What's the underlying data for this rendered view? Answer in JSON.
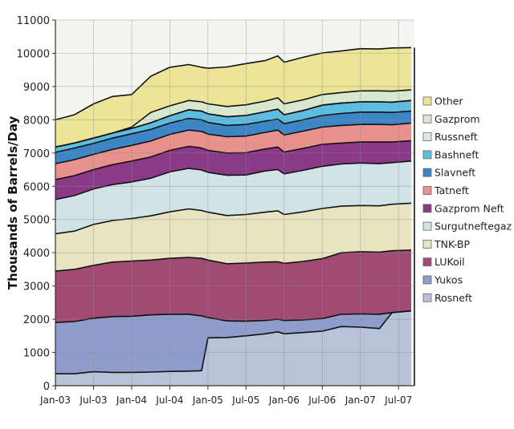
{
  "chart_data": {
    "type": "area",
    "stacked": true,
    "title": "",
    "xlabel": "",
    "ylabel": "Thousands of Barrels/Day",
    "ylim": [
      0,
      11000
    ],
    "yticks": [
      "0",
      "1000",
      "2000",
      "3000",
      "4000",
      "5000",
      "6000",
      "7000",
      "8000",
      "9000",
      "10000",
      "11000"
    ],
    "xticks": [
      "Jan-03",
      "Jul-03",
      "Jan-04",
      "Jul-04",
      "Jan-05",
      "Jul-05",
      "Jan-06",
      "Jul-06",
      "Jan-07",
      "Jul-07"
    ],
    "grid": true,
    "legend_position": "right",
    "x_months": [
      0,
      3,
      6,
      9,
      12,
      15,
      18,
      21,
      23,
      24,
      27,
      30,
      33,
      35,
      36,
      39,
      42,
      45,
      48,
      51,
      53,
      56
    ],
    "x": [
      "Jan-03",
      "Apr-03",
      "Jul-03",
      "Oct-03",
      "Jan-04",
      "Apr-04",
      "Jul-04",
      "Oct-04",
      "Dec-04",
      "Jan-05",
      "Apr-05",
      "Jul-05",
      "Oct-05",
      "Dec-05",
      "Jan-06",
      "Apr-06",
      "Jul-06",
      "Oct-06",
      "Jan-07",
      "Apr-07",
      "Jun-07",
      "Sep-07"
    ],
    "series": [
      {
        "name": "Rosneft",
        "color": "#b8c2d8",
        "values": [
          360,
          360,
          420,
          400,
          400,
          410,
          430,
          440,
          450,
          1440,
          1450,
          1500,
          1560,
          1620,
          1560,
          1600,
          1640,
          1780,
          1760,
          1720,
          2200,
          2250
        ]
      },
      {
        "name": "Yukos",
        "color": "#8e9dcc",
        "values": [
          1540,
          1570,
          1610,
          1680,
          1690,
          1720,
          1720,
          1710,
          1650,
          610,
          500,
          440,
          400,
          380,
          400,
          380,
          380,
          370,
          400,
          430,
          0,
          0
        ]
      },
      {
        "name": "LUKoil",
        "color": "#a04a74",
        "values": [
          1550,
          1570,
          1590,
          1640,
          1660,
          1650,
          1680,
          1710,
          1730,
          1730,
          1720,
          1750,
          1760,
          1730,
          1720,
          1760,
          1800,
          1850,
          1870,
          1870,
          1860,
          1830
        ]
      },
      {
        "name": "TNK-BP",
        "color": "#e8e4bf",
        "values": [
          1120,
          1150,
          1230,
          1250,
          1280,
          1330,
          1400,
          1460,
          1440,
          1440,
          1450,
          1460,
          1500,
          1530,
          1470,
          1490,
          1510,
          1400,
          1390,
          1390,
          1400,
          1410
        ]
      },
      {
        "name": "Surgutneftegaz",
        "color": "#d2e3e8",
        "values": [
          1030,
          1070,
          1070,
          1080,
          1100,
          1130,
          1200,
          1220,
          1220,
          1200,
          1210,
          1190,
          1240,
          1240,
          1220,
          1250,
          1270,
          1270,
          1280,
          1270,
          1250,
          1270
        ]
      },
      {
        "name": "Gazprom Neft",
        "color": "#8a3a86",
        "values": [
          600,
          600,
          580,
          600,
          630,
          640,
          650,
          660,
          660,
          660,
          670,
          670,
          660,
          680,
          660,
          660,
          660,
          630,
          630,
          650,
          620,
          610
        ]
      },
      {
        "name": "Tatneft",
        "color": "#e8918d",
        "values": [
          480,
          480,
          460,
          460,
          470,
          480,
          480,
          490,
          500,
          490,
          490,
          500,
          500,
          510,
          510,
          520,
          520,
          530,
          530,
          530,
          520,
          530
        ]
      },
      {
        "name": "Slavneft",
        "color": "#3d86c6",
        "values": [
          340,
          350,
          330,
          340,
          350,
          350,
          340,
          350,
          350,
          350,
          340,
          350,
          340,
          330,
          340,
          340,
          350,
          360,
          370,
          370,
          370,
          360
        ]
      },
      {
        "name": "Bashneft",
        "color": "#5cbde0",
        "values": [
          160,
          150,
          160,
          150,
          160,
          200,
          220,
          260,
          260,
          260,
          260,
          270,
          280,
          300,
          270,
          280,
          310,
          310,
          310,
          310,
          310,
          320
        ]
      },
      {
        "name": "Russneft",
        "color": "#dbe8ec",
        "values": [
          0,
          0,
          0,
          0,
          0,
          0,
          0,
          0,
          0,
          0,
          0,
          0,
          0,
          0,
          0,
          0,
          0,
          0,
          0,
          0,
          0,
          0
        ]
      },
      {
        "name": "Gazprom",
        "color": "#d7e8cf",
        "values": [
          0,
          0,
          0,
          0,
          40,
          310,
          300,
          280,
          280,
          300,
          310,
          320,
          320,
          340,
          330,
          320,
          320,
          320,
          330,
          330,
          330,
          320
        ]
      },
      {
        "name": "Other",
        "color": "#ece597",
        "values": [
          820,
          850,
          1030,
          1100,
          980,
          1090,
          1160,
          1080,
          1040,
          1070,
          1190,
          1240,
          1220,
          1260,
          1250,
          1280,
          1250,
          1250,
          1270,
          1260,
          1300,
          1270
        ]
      }
    ]
  },
  "legend_order": [
    "Other",
    "Gazprom",
    "Russneft",
    "Bashneft",
    "Slavneft",
    "Tatneft",
    "Gazprom Neft",
    "Surgutneftegaz",
    "TNK-BP",
    "LUKoil",
    "Yukos",
    "Rosneft"
  ],
  "colors": {
    "plot_background": "#f4f5f0",
    "grid": "#8a8a8a",
    "boundary": "#111111"
  }
}
